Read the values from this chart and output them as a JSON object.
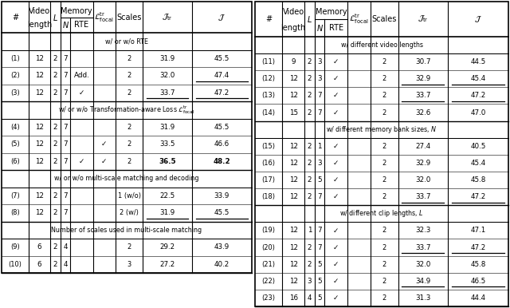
{
  "left_rows": [
    {
      "id": "(1)",
      "vid": "12",
      "L": "2",
      "N": "7",
      "rte": "",
      "focal": "",
      "scales": "2",
      "jtr": "31.9",
      "j": "45.5",
      "jtr_ul": false,
      "j_ul": false,
      "bold": false
    },
    {
      "id": "(2)",
      "vid": "12",
      "L": "2",
      "N": "7",
      "rte": "Add.",
      "focal": "",
      "scales": "2",
      "jtr": "32.0",
      "j": "47.4",
      "jtr_ul": false,
      "j_ul": true,
      "bold": false
    },
    {
      "id": "(3)",
      "vid": "12",
      "L": "2",
      "N": "7",
      "rte": "✓",
      "focal": "",
      "scales": "2",
      "jtr": "33.7",
      "j": "47.2",
      "jtr_ul": true,
      "j_ul": true,
      "bold": false
    },
    {
      "id": "(4)",
      "vid": "12",
      "L": "2",
      "N": "7",
      "rte": "",
      "focal": "",
      "scales": "2",
      "jtr": "31.9",
      "j": "45.5",
      "jtr_ul": false,
      "j_ul": false,
      "bold": false
    },
    {
      "id": "(5)",
      "vid": "12",
      "L": "2",
      "N": "7",
      "rte": "",
      "focal": "✓",
      "scales": "2",
      "jtr": "33.5",
      "j": "46.6",
      "jtr_ul": false,
      "j_ul": false,
      "bold": false
    },
    {
      "id": "(6)",
      "vid": "12",
      "L": "2",
      "N": "7",
      "rte": "✓",
      "focal": "✓",
      "scales": "2",
      "jtr": "36.5",
      "j": "48.2",
      "jtr_ul": false,
      "j_ul": false,
      "bold": true
    },
    {
      "id": "(7)",
      "vid": "12",
      "L": "2",
      "N": "7",
      "rte": "",
      "focal": "",
      "scales": "1 (w/o)",
      "jtr": "22.5",
      "j": "33.9",
      "jtr_ul": false,
      "j_ul": false,
      "bold": false
    },
    {
      "id": "(8)",
      "vid": "12",
      "L": "2",
      "N": "7",
      "rte": "",
      "focal": "",
      "scales": "2 (w/)",
      "jtr": "31.9",
      "j": "45.5",
      "jtr_ul": true,
      "j_ul": true,
      "bold": false
    },
    {
      "id": "(9)",
      "vid": "6",
      "L": "2",
      "N": "4",
      "rte": "",
      "focal": "",
      "scales": "2",
      "jtr": "29.2",
      "j": "43.9",
      "jtr_ul": false,
      "j_ul": false,
      "bold": false
    },
    {
      "id": "(10)",
      "vid": "6",
      "L": "2",
      "N": "4",
      "rte": "",
      "focal": "",
      "scales": "3",
      "jtr": "27.2",
      "j": "40.2",
      "jtr_ul": false,
      "j_ul": false,
      "bold": false
    }
  ],
  "left_sections": [
    {
      "label": "w/ or w/o RTE",
      "nrows": 3
    },
    {
      "label": "w/ or w/o Transformation-aware Loss $\\mathcal{L}^{\\mathrm{tr}}_{\\mathrm{focal}}$",
      "nrows": 3
    },
    {
      "label": "w/ or w/o multi-scale matching and decoding",
      "nrows": 2
    },
    {
      "label": "Number of scales used in multi-scale matching",
      "nrows": 2
    }
  ],
  "right_rows": [
    {
      "id": "(11)",
      "vid": "9",
      "L": "2",
      "N": "3",
      "rte": "✓",
      "focal": "",
      "scales": "2",
      "jtr": "30.7",
      "j": "44.5",
      "jtr_ul": false,
      "j_ul": false,
      "bold": false
    },
    {
      "id": "(12)",
      "vid": "12",
      "L": "2",
      "N": "3",
      "rte": "✓",
      "focal": "",
      "scales": "2",
      "jtr": "32.9",
      "j": "45.4",
      "jtr_ul": true,
      "j_ul": true,
      "bold": false
    },
    {
      "id": "(13)",
      "vid": "12",
      "L": "2",
      "N": "7",
      "rte": "✓",
      "focal": "",
      "scales": "2",
      "jtr": "33.7",
      "j": "47.2",
      "jtr_ul": true,
      "j_ul": true,
      "bold": false
    },
    {
      "id": "(14)",
      "vid": "15",
      "L": "2",
      "N": "7",
      "rte": "✓",
      "focal": "",
      "scales": "2",
      "jtr": "32.6",
      "j": "47.0",
      "jtr_ul": false,
      "j_ul": false,
      "bold": false
    },
    {
      "id": "(15)",
      "vid": "12",
      "L": "2",
      "N": "1",
      "rte": "✓",
      "focal": "",
      "scales": "2",
      "jtr": "27.4",
      "j": "40.5",
      "jtr_ul": false,
      "j_ul": false,
      "bold": false
    },
    {
      "id": "(16)",
      "vid": "12",
      "L": "2",
      "N": "3",
      "rte": "✓",
      "focal": "",
      "scales": "2",
      "jtr": "32.9",
      "j": "45.4",
      "jtr_ul": false,
      "j_ul": false,
      "bold": false
    },
    {
      "id": "(17)",
      "vid": "12",
      "L": "2",
      "N": "5",
      "rte": "✓",
      "focal": "",
      "scales": "2",
      "jtr": "32.0",
      "j": "45.8",
      "jtr_ul": false,
      "j_ul": false,
      "bold": false
    },
    {
      "id": "(18)",
      "vid": "12",
      "L": "2",
      "N": "7",
      "rte": "✓",
      "focal": "",
      "scales": "2",
      "jtr": "33.7",
      "j": "47.2",
      "jtr_ul": true,
      "j_ul": true,
      "bold": false
    },
    {
      "id": "(19)",
      "vid": "12",
      "L": "1",
      "N": "7",
      "rte": "✓",
      "focal": "",
      "scales": "2",
      "jtr": "32.3",
      "j": "47.1",
      "jtr_ul": false,
      "j_ul": false,
      "bold": false
    },
    {
      "id": "(20)",
      "vid": "12",
      "L": "2",
      "N": "7",
      "rte": "✓",
      "focal": "",
      "scales": "2",
      "jtr": "33.7",
      "j": "47.2",
      "jtr_ul": true,
      "j_ul": true,
      "bold": false
    },
    {
      "id": "(21)",
      "vid": "12",
      "L": "2",
      "N": "5",
      "rte": "✓",
      "focal": "",
      "scales": "2",
      "jtr": "32.0",
      "j": "45.8",
      "jtr_ul": false,
      "j_ul": false,
      "bold": false
    },
    {
      "id": "(22)",
      "vid": "12",
      "L": "3",
      "N": "5",
      "rte": "✓",
      "focal": "",
      "scales": "2",
      "jtr": "34.9",
      "j": "46.5",
      "jtr_ul": true,
      "j_ul": true,
      "bold": false
    },
    {
      "id": "(23)",
      "vid": "16",
      "L": "4",
      "N": "5",
      "rte": "✓",
      "focal": "",
      "scales": "2",
      "jtr": "31.3",
      "j": "44.4",
      "jtr_ul": false,
      "j_ul": false,
      "bold": false
    }
  ],
  "right_sections": [
    {
      "label": "w/ different video lengths",
      "nrows": 4
    },
    {
      "label": "w/ different memory bank sizes, $N$",
      "nrows": 4
    },
    {
      "label": "w/ different clip lengths, $L$",
      "nrows": 5
    }
  ]
}
